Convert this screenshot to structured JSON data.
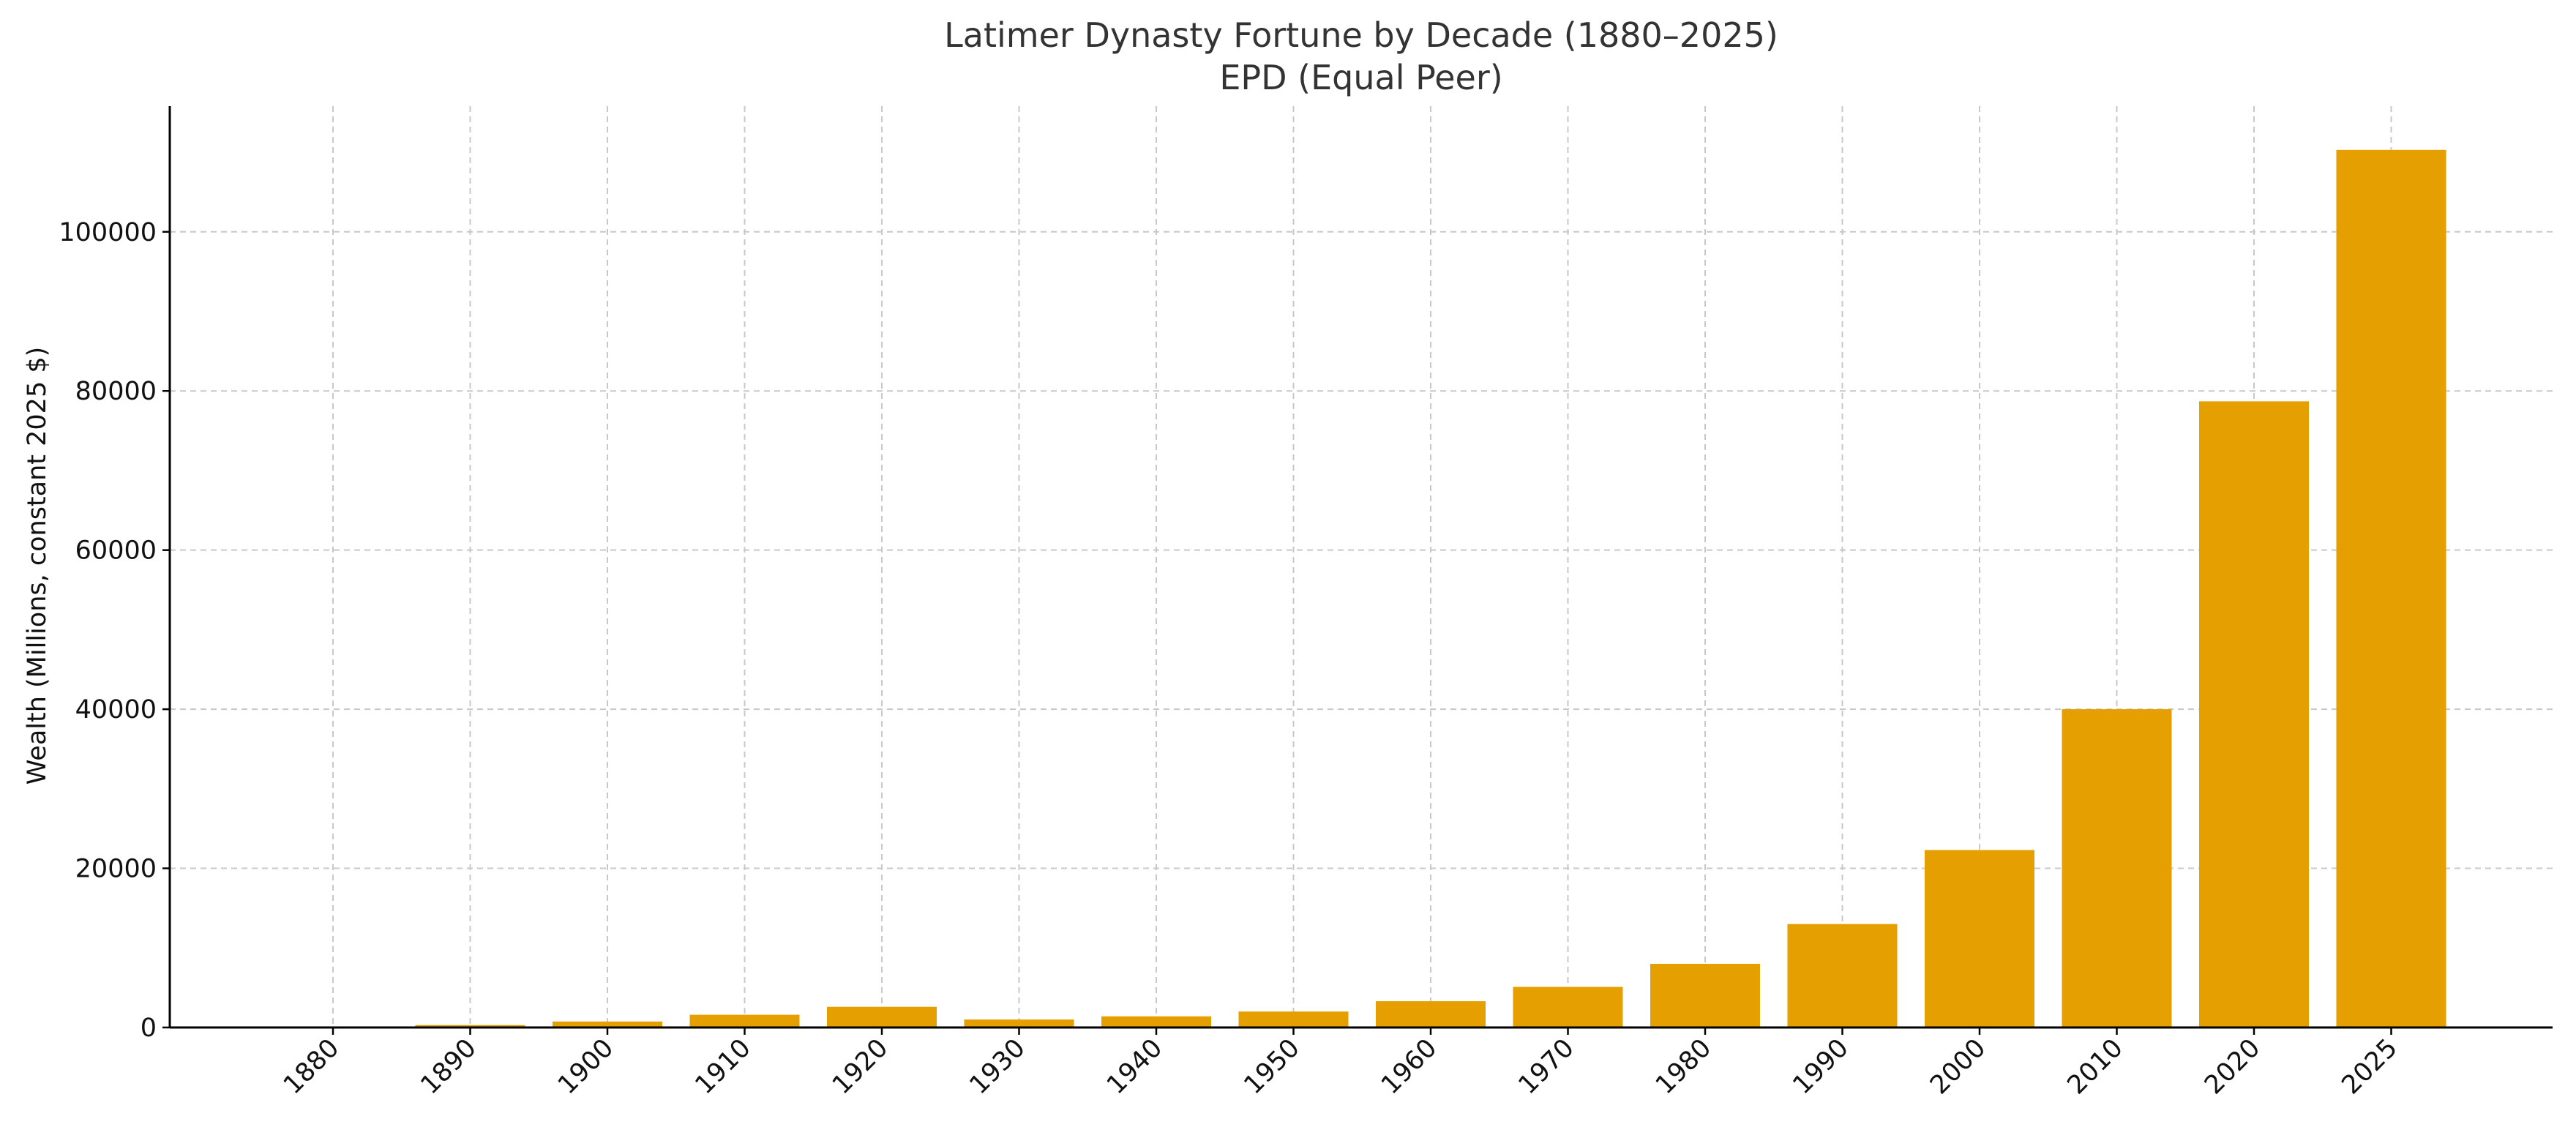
{
  "chart_data": {
    "type": "bar",
    "title": "Latimer Dynasty Fortune by Decade (1880–2025)",
    "subtitle": "EPD (Equal Peer)",
    "xlabel": "",
    "ylabel": "Wealth (Millions, constant 2025 $)",
    "categories": [
      "1880",
      "1890",
      "1900",
      "1910",
      "1920",
      "1930",
      "1940",
      "1950",
      "1960",
      "1970",
      "1980",
      "1990",
      "2000",
      "2010",
      "2020",
      "2025"
    ],
    "values": [
      80,
      300,
      750,
      1600,
      2600,
      1000,
      1400,
      2000,
      3300,
      5100,
      8000,
      13000,
      22300,
      40000,
      78700,
      110300
    ],
    "ylim": [
      0,
      115800
    ],
    "yticks": [
      0,
      20000,
      40000,
      60000,
      80000,
      100000
    ],
    "bar_color": "#E69F00",
    "grid": true,
    "legend": "none"
  }
}
